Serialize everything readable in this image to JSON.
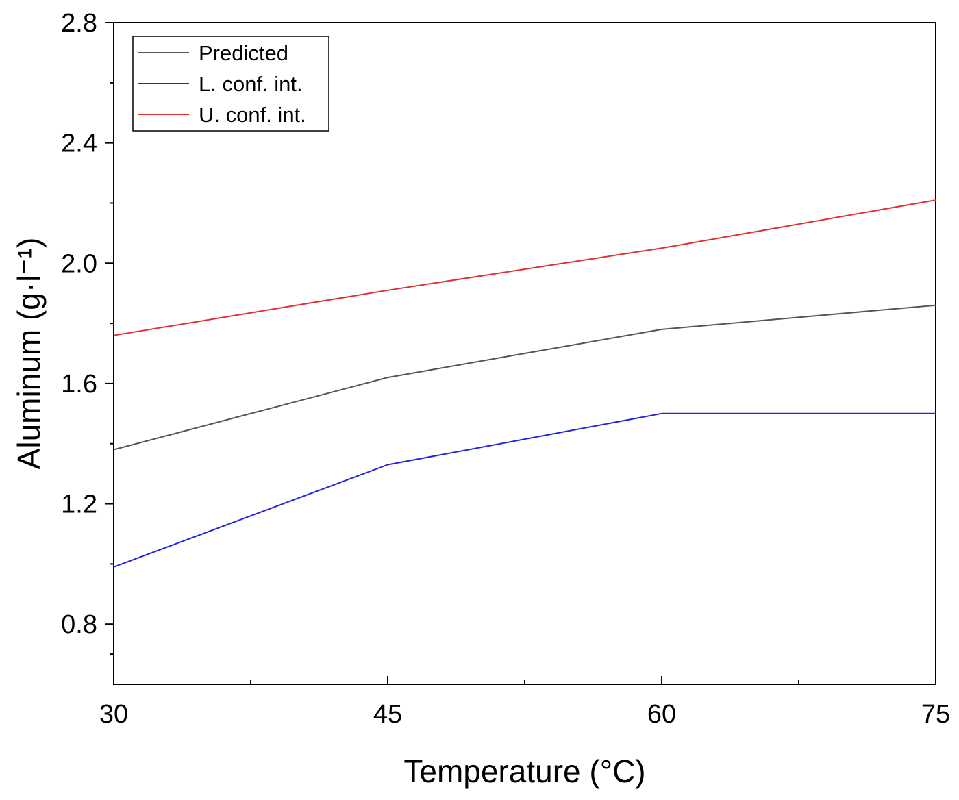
{
  "chart_data": {
    "type": "line",
    "xlabel": "Temperature (°C)",
    "ylabel": "Aluminum (g·l⁻¹)",
    "xlim": [
      30,
      75
    ],
    "ylim": [
      0.6,
      2.8
    ],
    "x_ticks": [
      30,
      45,
      60,
      75
    ],
    "x_tick_labels": [
      "30",
      "45",
      "60",
      "75"
    ],
    "y_ticks": [
      0.8,
      1.2,
      1.6,
      2.0,
      2.4,
      2.8
    ],
    "y_tick_labels": [
      "0.8",
      "1.2",
      "1.6",
      "2.0",
      "2.4",
      "2.8"
    ],
    "x": [
      30,
      45,
      60,
      75
    ],
    "grid": false,
    "legend_position": "top-left",
    "series": [
      {
        "name": "Predicted",
        "color": "#555555",
        "values": [
          1.38,
          1.62,
          1.78,
          1.86
        ]
      },
      {
        "name": "L. conf. int.",
        "color": "#2323e0",
        "values": [
          0.99,
          1.33,
          1.5,
          1.5
        ]
      },
      {
        "name": "U. conf. int.",
        "color": "#e03030",
        "values": [
          1.76,
          1.91,
          2.05,
          2.21
        ]
      }
    ]
  }
}
